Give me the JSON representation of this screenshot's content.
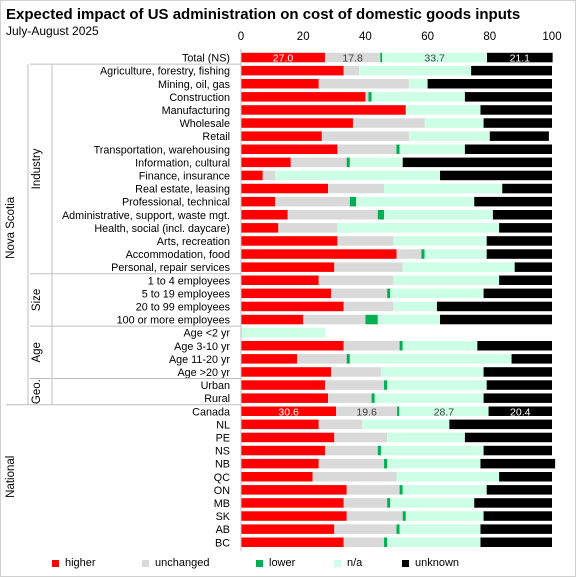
{
  "title": "Expected impact of US administration on cost of domestic goods inputs",
  "subtitle": "July-August 2025",
  "colors": {
    "higher": "#ff0000",
    "unchanged": "#d9d9d9",
    "lower": "#00b050",
    "na": "#ccffe5",
    "unknown": "#000000"
  },
  "chart_data": {
    "type": "bar",
    "stacked": true,
    "orientation": "horizontal",
    "xlim": [
      0,
      100
    ],
    "xticks": [
      0,
      20,
      40,
      60,
      80,
      100
    ],
    "grid": false,
    "legend_position": "bottom",
    "categories": [
      "Total (NS)",
      "Agriculture, forestry, fishing",
      "Mining, oil, gas",
      "Construction",
      "Manufacturing",
      "Wholesale",
      "Retail",
      "Transportation, warehousing",
      "Information, cultural",
      "Finance, insurance",
      "Real estate, leasing",
      "Professional, technical",
      "Administrative, support, waste mgt.",
      "Health, social (incl. daycare)",
      "Arts, recreation",
      "Accommodation, food",
      "Personal, repair services",
      "1 to 4 employees",
      "5 to 19 employees",
      "20 to 99 employees",
      "100 or more employees",
      "Age <2 yr",
      "Age 3-10 yr",
      "Age 11-20 yr",
      "Age >20 yr",
      "Urban",
      "Rural",
      "Canada",
      "NL",
      "PE",
      "NS",
      "NB",
      "QC",
      "ON",
      "MB",
      "SK",
      "AB",
      "BC"
    ],
    "series": [
      {
        "name": "higher",
        "values": [
          27.0,
          33,
          25,
          40,
          53,
          36,
          26,
          31,
          16,
          7,
          28,
          11,
          15,
          12,
          31,
          50,
          30,
          25,
          29,
          33,
          20,
          0,
          33,
          18,
          29,
          27,
          28,
          30.6,
          25,
          30,
          27,
          25,
          23,
          34,
          33,
          34,
          30,
          33
        ]
      },
      {
        "name": "unchanged",
        "values": [
          17.8,
          5,
          29,
          1,
          0,
          23,
          28,
          19,
          18,
          4,
          18,
          24,
          29,
          19,
          18,
          8,
          22,
          24,
          18,
          16,
          20,
          0,
          18,
          16,
          16,
          19,
          14,
          19.6,
          14,
          17,
          17,
          21,
          27,
          17,
          14,
          18,
          20,
          13
        ]
      },
      {
        "name": "lower",
        "values": [
          0.6,
          0,
          0,
          1,
          0,
          0,
          0,
          1,
          1,
          0,
          0,
          2,
          2,
          0,
          0,
          1,
          0,
          0,
          1,
          0,
          4,
          0,
          1,
          1,
          0,
          1,
          1,
          0.7,
          0,
          0,
          1,
          1,
          0,
          1,
          1,
          1,
          1,
          1
        ]
      },
      {
        "name": "n/a",
        "values": [
          33.7,
          36,
          6,
          30,
          24,
          19,
          26,
          21,
          17,
          53,
          38,
          38,
          35,
          52,
          30,
          20,
          36,
          34,
          30,
          14,
          20,
          27,
          24,
          52,
          33,
          32,
          35,
          28.7,
          28,
          25,
          33,
          30,
          33,
          27,
          27,
          25,
          26,
          30
        ]
      },
      {
        "name": "unknown",
        "values": [
          21.1,
          26,
          40,
          28,
          23,
          22,
          19,
          28,
          48,
          36,
          16,
          25,
          19,
          17,
          21,
          21,
          12,
          17,
          22,
          37,
          36,
          0,
          24,
          13,
          22,
          21,
          22,
          20.4,
          33,
          28,
          22,
          24,
          17,
          21,
          25,
          22,
          23,
          23
        ]
      }
    ],
    "data_labels": [
      {
        "category": "Total (NS)",
        "values": [
          "27.0",
          "17.8",
          "",
          "33.7",
          "21.1"
        ]
      },
      {
        "category": "Canada",
        "values": [
          "30.6",
          "19.6",
          "",
          "28.7",
          "20.4"
        ]
      }
    ],
    "groups": [
      {
        "label": "Nova Scotia",
        "level": 1
      },
      {
        "label": "Industry",
        "level": 2
      },
      {
        "label": "Size",
        "level": 2
      },
      {
        "label": "Age",
        "level": 2
      },
      {
        "label": "Geo.",
        "level": 2
      },
      {
        "label": "National",
        "level": 1
      }
    ],
    "legend": [
      "higher",
      "unchanged",
      "lower",
      "n/a",
      "unknown"
    ]
  }
}
